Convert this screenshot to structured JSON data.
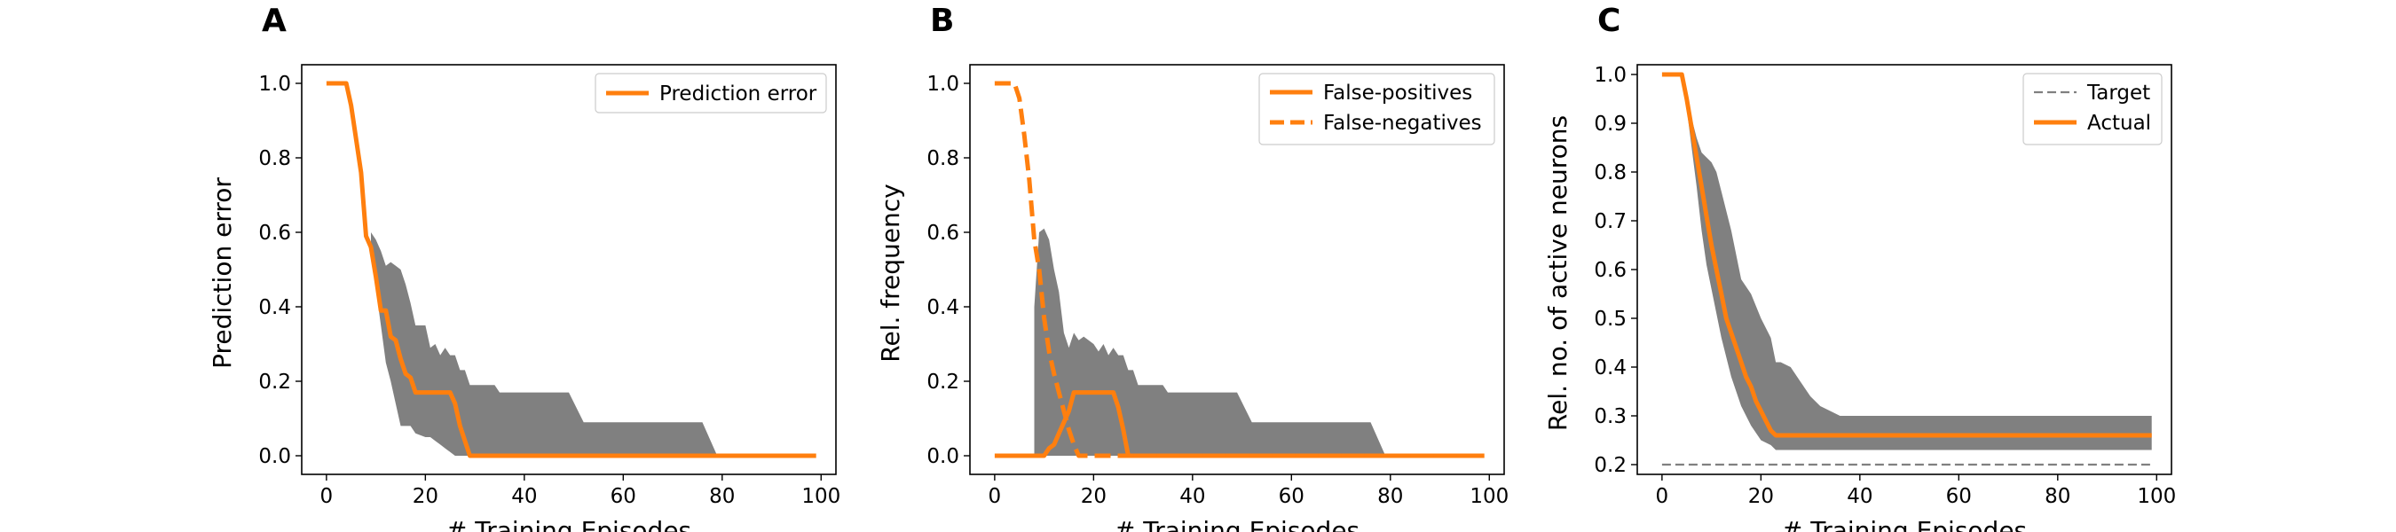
{
  "colors": {
    "line": "#ff7f0e",
    "band": "#808080",
    "target": "#808080",
    "axes": "#000000",
    "legend_border": "#cccccc"
  },
  "chart_data": [
    {
      "panel": "A",
      "type": "line",
      "xlabel": "# Training Episodes",
      "ylabel": "Prediction error",
      "xlim": [
        -5,
        103
      ],
      "ylim": [
        -0.05,
        1.05
      ],
      "xticks": [
        0,
        20,
        40,
        60,
        80,
        100
      ],
      "yticks": [
        0.0,
        0.2,
        0.4,
        0.6,
        0.8,
        1.0
      ],
      "ytick_labels": [
        "0.0",
        "0.2",
        "0.4",
        "0.6",
        "0.8",
        "1.0"
      ],
      "grid": false,
      "legend": "top-right",
      "series": [
        {
          "name": "Prediction error",
          "style": "solid",
          "x": [
            0,
            4,
            5,
            7,
            8,
            9,
            10,
            11,
            12,
            13,
            14,
            15,
            16,
            17,
            18,
            19,
            20,
            21,
            22,
            23,
            24,
            25,
            26,
            27,
            28,
            29,
            30,
            40,
            60,
            80,
            99
          ],
          "y": [
            1.0,
            1.0,
            0.94,
            0.76,
            0.59,
            0.56,
            0.48,
            0.39,
            0.39,
            0.32,
            0.31,
            0.26,
            0.22,
            0.21,
            0.17,
            0.17,
            0.17,
            0.17,
            0.17,
            0.17,
            0.17,
            0.17,
            0.14,
            0.08,
            0.04,
            0.0,
            0.0,
            0.0,
            0.0,
            0.0,
            0.0
          ]
        }
      ],
      "band": {
        "x": [
          9,
          10,
          11,
          12,
          13,
          14,
          15,
          16,
          17,
          18,
          20,
          21,
          22,
          23,
          24,
          25,
          26,
          27,
          28,
          29,
          30,
          34,
          35,
          49,
          52,
          76,
          79
        ],
        "upper": [
          0.6,
          0.58,
          0.55,
          0.51,
          0.52,
          0.51,
          0.5,
          0.46,
          0.41,
          0.35,
          0.35,
          0.29,
          0.3,
          0.27,
          0.29,
          0.27,
          0.27,
          0.23,
          0.23,
          0.19,
          0.19,
          0.19,
          0.17,
          0.17,
          0.09,
          0.09,
          0.0
        ],
        "lower": [
          0.55,
          0.45,
          0.35,
          0.25,
          0.2,
          0.14,
          0.08,
          0.08,
          0.08,
          0.06,
          0.05,
          0.05,
          0.04,
          0.03,
          0.02,
          0.01,
          0.0,
          0.0,
          0.0,
          0.0,
          0.0,
          0.0,
          0.0,
          0.0,
          0.0,
          0.0,
          0.0
        ]
      }
    },
    {
      "panel": "B",
      "type": "line",
      "xlabel": "# Training Episodes",
      "ylabel": "Rel. frequency",
      "xlim": [
        -5,
        103
      ],
      "ylim": [
        -0.05,
        1.05
      ],
      "xticks": [
        0,
        20,
        40,
        60,
        80,
        100
      ],
      "yticks": [
        0.0,
        0.2,
        0.4,
        0.6,
        0.8,
        1.0
      ],
      "ytick_labels": [
        "0.0",
        "0.2",
        "0.4",
        "0.6",
        "0.8",
        "1.0"
      ],
      "grid": false,
      "legend": "top-right",
      "series": [
        {
          "name": "False-positives",
          "style": "solid",
          "x": [
            0,
            10,
            11,
            12,
            13,
            14,
            15,
            16,
            17,
            24,
            25,
            26,
            27,
            28,
            99
          ],
          "y": [
            0.0,
            0.0,
            0.02,
            0.03,
            0.06,
            0.09,
            0.12,
            0.17,
            0.17,
            0.17,
            0.13,
            0.07,
            0.0,
            0.0,
            0.0
          ]
        },
        {
          "name": "False-negatives",
          "style": "dashed",
          "x": [
            0,
            4,
            5,
            6,
            7,
            8,
            9,
            10,
            11,
            12,
            13,
            14,
            15,
            16,
            17,
            18,
            19,
            20,
            99
          ],
          "y": [
            1.0,
            1.0,
            0.96,
            0.86,
            0.74,
            0.58,
            0.5,
            0.37,
            0.28,
            0.22,
            0.17,
            0.12,
            0.07,
            0.03,
            0.0,
            0.0,
            0.0,
            0.0,
            0.0
          ]
        }
      ],
      "band": {
        "x": [
          8,
          9,
          10,
          11,
          12,
          13,
          14,
          15,
          16,
          17,
          18,
          20,
          21,
          22,
          23,
          24,
          25,
          26,
          27,
          28,
          29,
          30,
          34,
          35,
          49,
          52,
          76,
          79
        ],
        "upper": [
          0.4,
          0.6,
          0.61,
          0.58,
          0.5,
          0.44,
          0.33,
          0.29,
          0.33,
          0.31,
          0.32,
          0.3,
          0.28,
          0.3,
          0.27,
          0.29,
          0.27,
          0.27,
          0.23,
          0.23,
          0.19,
          0.19,
          0.19,
          0.17,
          0.17,
          0.09,
          0.09,
          0.0
        ],
        "lower": [
          0.0,
          0.0,
          0.0,
          0.0,
          0.0,
          0.0,
          0.0,
          0.0,
          0.0,
          0.0,
          0.0,
          0.0,
          0.0,
          0.0,
          0.0,
          0.0,
          0.0,
          0.0,
          0.0,
          0.0,
          0.0,
          0.0,
          0.0,
          0.0,
          0.0,
          0.0,
          0.0,
          0.0
        ]
      }
    },
    {
      "panel": "C",
      "type": "line",
      "xlabel": "# Training Episodes",
      "ylabel": "Rel. no. of active neurons",
      "xlim": [
        -5,
        103
      ],
      "ylim": [
        0.18,
        1.02
      ],
      "xticks": [
        0,
        20,
        40,
        60,
        80,
        100
      ],
      "yticks": [
        0.2,
        0.3,
        0.4,
        0.5,
        0.6,
        0.7,
        0.8,
        0.9,
        1.0
      ],
      "ytick_labels": [
        "0.2",
        "0.3",
        "0.4",
        "0.5",
        "0.6",
        "0.7",
        "0.8",
        "0.9",
        "1.0"
      ],
      "grid": false,
      "legend": "top-right",
      "series": [
        {
          "name": "Target",
          "style": "dashed-thin",
          "x": [
            0,
            99
          ],
          "y": [
            0.2,
            0.2
          ]
        },
        {
          "name": "Actual",
          "style": "solid",
          "x": [
            0,
            4,
            5,
            6,
            7,
            8,
            9,
            10,
            11,
            12,
            13,
            14,
            15,
            16,
            17,
            18,
            19,
            20,
            21,
            22,
            23,
            24,
            99
          ],
          "y": [
            1.0,
            1.0,
            0.95,
            0.89,
            0.83,
            0.77,
            0.71,
            0.65,
            0.6,
            0.55,
            0.5,
            0.47,
            0.44,
            0.41,
            0.38,
            0.36,
            0.33,
            0.31,
            0.29,
            0.27,
            0.26,
            0.26,
            0.26
          ]
        }
      ],
      "band": {
        "x": [
          4,
          5,
          6,
          7,
          8,
          9,
          10,
          11,
          12,
          14,
          16,
          18,
          20,
          22,
          23,
          24,
          26,
          28,
          30,
          32,
          34,
          36,
          99
        ],
        "upper": [
          1.0,
          0.96,
          0.91,
          0.87,
          0.84,
          0.83,
          0.82,
          0.8,
          0.76,
          0.68,
          0.58,
          0.55,
          0.5,
          0.46,
          0.41,
          0.41,
          0.4,
          0.37,
          0.34,
          0.32,
          0.31,
          0.3,
          0.3
        ],
        "lower": [
          1.0,
          0.93,
          0.85,
          0.77,
          0.68,
          0.61,
          0.56,
          0.51,
          0.46,
          0.38,
          0.32,
          0.28,
          0.25,
          0.24,
          0.23,
          0.23,
          0.23,
          0.23,
          0.23,
          0.23,
          0.23,
          0.23,
          0.23
        ]
      }
    }
  ]
}
